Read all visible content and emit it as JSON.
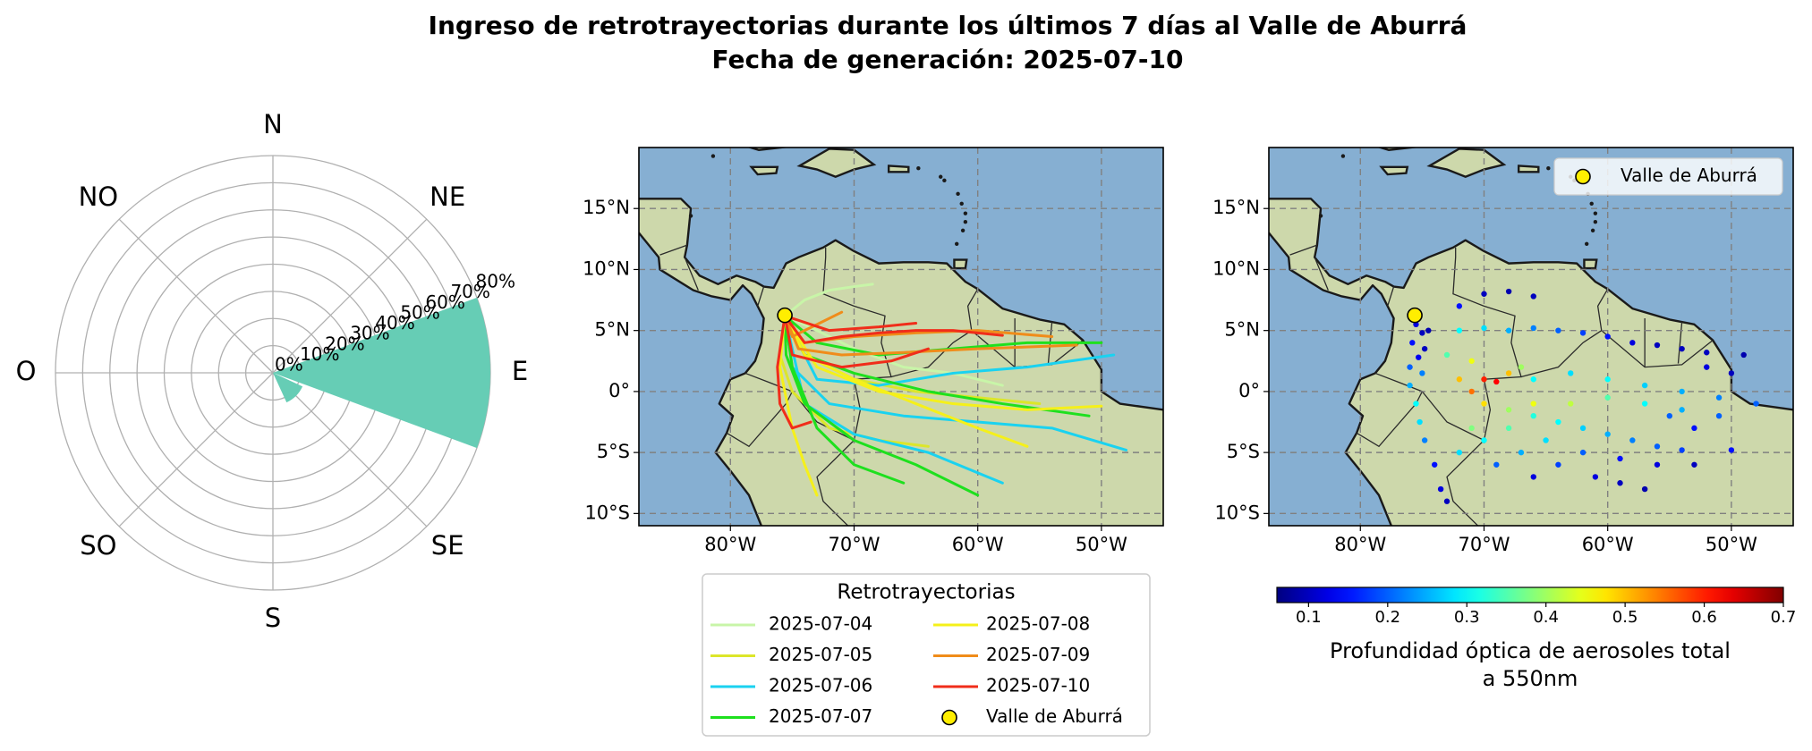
{
  "title": "Ingreso de retrotrayectorias durante los últimos 7 días al Valle de Aburrá",
  "subtitle": "Fecha de generación: 2025-07-10",
  "chart_data": [
    {
      "type": "polar_bar",
      "categories": [
        "N",
        "NE",
        "E",
        "SE",
        "S",
        "SO",
        "O",
        "NO"
      ],
      "values": [
        0,
        0,
        80,
        12,
        0,
        0,
        0,
        0
      ],
      "color": "#66cdb5",
      "ylim": [
        0,
        80
      ],
      "yticks": [
        {
          "value": 0,
          "label": "0%"
        },
        {
          "value": 10,
          "label": "10%"
        },
        {
          "value": 20,
          "label": "20%"
        },
        {
          "value": 30,
          "label": "30%"
        },
        {
          "value": 40,
          "label": "40%"
        },
        {
          "value": 50,
          "label": "50%"
        },
        {
          "value": 60,
          "label": "60%"
        },
        {
          "value": 70,
          "label": "70%"
        },
        {
          "value": 80,
          "label": "80%"
        }
      ],
      "grid": true
    },
    {
      "type": "trajectory_map",
      "xlim": [
        -87.4,
        -45
      ],
      "ylim": [
        -11,
        20
      ],
      "xticks": [
        {
          "value": -80,
          "label": "80°W"
        },
        {
          "value": -70,
          "label": "70°W"
        },
        {
          "value": -60,
          "label": "60°W"
        },
        {
          "value": -50,
          "label": "50°W"
        }
      ],
      "yticks": [
        {
          "value": 15,
          "label": "15°N"
        },
        {
          "value": 10,
          "label": "10°N"
        },
        {
          "value": 5,
          "label": "5°N"
        },
        {
          "value": 0,
          "label": "0°"
        },
        {
          "value": -5,
          "label": "5°S"
        },
        {
          "value": -10,
          "label": "10°S"
        }
      ],
      "grid": true,
      "legend_title": "Retrotrayectorias",
      "series": [
        {
          "name": "2025-07-04",
          "color": "#c8f5a8",
          "lines": [
            {
              "x": [
                -75.6,
                -74,
                -72,
                -70,
                -68.5
              ],
              "y": [
                6.2,
                7.5,
                8.3,
                8.6,
                8.8
              ]
            },
            {
              "x": [
                -75.6,
                -73,
                -70,
                -66,
                -62,
                -58
              ],
              "y": [
                6.2,
                5,
                3.5,
                2,
                1.5,
                0.5
              ]
            }
          ]
        },
        {
          "name": "2025-07-05",
          "color": "#dce62a",
          "lines": [
            {
              "x": [
                -75.6,
                -76,
                -75,
                -72,
                -68,
                -64
              ],
              "y": [
                6.2,
                3,
                0,
                -3,
                -4,
                -4.5
              ]
            },
            {
              "x": [
                -75.6,
                -74,
                -70,
                -65,
                -60,
                -55
              ],
              "y": [
                6.2,
                3,
                1,
                0,
                -0.5,
                -1
              ]
            }
          ]
        },
        {
          "name": "2025-07-06",
          "color": "#1ad2f0",
          "lines": [
            {
              "x": [
                -75.6,
                -75,
                -72,
                -66,
                -60,
                -54,
                -48
              ],
              "y": [
                6.2,
                2,
                -1,
                -2,
                -2.5,
                -3,
                -4.8
              ]
            },
            {
              "x": [
                -75.6,
                -73,
                -68,
                -62,
                -56,
                -49
              ],
              "y": [
                6.2,
                1,
                0.5,
                1.5,
                2,
                3
              ]
            },
            {
              "x": [
                -75.6,
                -74,
                -70,
                -64,
                -58
              ],
              "y": [
                6.2,
                -1,
                -3.5,
                -5,
                -7.5
              ]
            }
          ]
        },
        {
          "name": "2025-07-07",
          "color": "#1ee01e",
          "lines": [
            {
              "x": [
                -75.6,
                -75.5,
                -74,
                -70,
                -65,
                -60
              ],
              "y": [
                6.2,
                3,
                -1,
                -4,
                -6,
                -8.5
              ]
            },
            {
              "x": [
                -75.6,
                -74,
                -70,
                -64,
                -58,
                -51
              ],
              "y": [
                6.2,
                3,
                1.5,
                0,
                -1,
                -2
              ]
            },
            {
              "x": [
                -75.6,
                -73,
                -68,
                -62,
                -56,
                -50
              ],
              "y": [
                6.2,
                4,
                3,
                3.5,
                4,
                4
              ]
            },
            {
              "x": [
                -75.6,
                -75,
                -73,
                -70,
                -66
              ],
              "y": [
                6.2,
                2,
                -3,
                -6,
                -7.5
              ]
            }
          ]
        },
        {
          "name": "2025-07-08",
          "color": "#f5f01a",
          "lines": [
            {
              "x": [
                -75.6,
                -76,
                -75,
                -74,
                -73
              ],
              "y": [
                6.2,
                2,
                -3,
                -6,
                -8.5
              ]
            },
            {
              "x": [
                -75.6,
                -73,
                -68,
                -62,
                -56,
                -50
              ],
              "y": [
                6.2,
                2,
                0,
                -1,
                -1.5,
                -1.2
              ]
            },
            {
              "x": [
                -75.6,
                -74,
                -70,
                -65,
                -60,
                -56
              ],
              "y": [
                6.2,
                3,
                1,
                -1,
                -3,
                -4.5
              ]
            }
          ]
        },
        {
          "name": "2025-07-09",
          "color": "#f08c1a",
          "lines": [
            {
              "x": [
                -75.6,
                -74,
                -70,
                -65,
                -60,
                -54
              ],
              "y": [
                6.2,
                4,
                4.5,
                4.8,
                5,
                4.5
              ]
            },
            {
              "x": [
                -75.6,
                -74.5,
                -71,
                -66,
                -60,
                -52
              ],
              "y": [
                6.2,
                3.5,
                3,
                3.2,
                3.5,
                3.8
              ]
            },
            {
              "x": [
                -75.6,
                -75,
                -73,
                -71
              ],
              "y": [
                6.2,
                4.5,
                5.5,
                6.5
              ]
            }
          ]
        },
        {
          "name": "2025-07-10",
          "color": "#f02d1a",
          "lines": [
            {
              "x": [
                -75.6,
                -74,
                -71,
                -68,
                -65,
                -62,
                -58
              ],
              "y": [
                6.2,
                4,
                4.5,
                4.8,
                5,
                5,
                4.6
              ]
            },
            {
              "x": [
                -75.6,
                -76.2,
                -76,
                -75,
                -73.5
              ],
              "y": [
                6.2,
                2,
                -1,
                -3,
                -2.5
              ]
            },
            {
              "x": [
                -75.6,
                -75,
                -71,
                -67,
                -64
              ],
              "y": [
                6.2,
                3,
                2,
                2.5,
                3.5
              ]
            },
            {
              "x": [
                -75.6,
                -72,
                -68,
                -65
              ],
              "y": [
                6.2,
                5,
                5.3,
                5.6
              ]
            }
          ]
        }
      ],
      "points": [
        {
          "name": "Valle de Aburrá",
          "color": "#ffee00",
          "x": [
            -75.6
          ],
          "y": [
            6.25
          ]
        }
      ]
    },
    {
      "type": "aod_map",
      "xlim": [
        -87.4,
        -45
      ],
      "ylim": [
        -11,
        20
      ],
      "xticks": [
        {
          "value": -80,
          "label": "80°W"
        },
        {
          "value": -70,
          "label": "70°W"
        },
        {
          "value": -60,
          "label": "60°W"
        },
        {
          "value": -50,
          "label": "50°W"
        }
      ],
      "yticks": [
        {
          "value": 15,
          "label": "15°N"
        },
        {
          "value": 10,
          "label": "10°N"
        },
        {
          "value": 5,
          "label": "5°N"
        },
        {
          "value": 0,
          "label": "0°"
        },
        {
          "value": -5,
          "label": "5°S"
        },
        {
          "value": -10,
          "label": "10°S"
        }
      ],
      "grid": true,
      "legend": "upper right",
      "x": [
        -75.5,
        -75,
        -75.8,
        -74.8,
        -75.3,
        -76,
        -74.5,
        -75,
        -76,
        -75.5,
        -75.2,
        -74.8,
        -74,
        -73.5,
        -73,
        -73,
        -71,
        -70,
        -69,
        -68,
        -67,
        -72,
        -71,
        -70,
        -68,
        -66,
        -64,
        -62,
        -60,
        -58,
        -56,
        -54,
        -50,
        -72,
        -70,
        -68,
        -66,
        -64,
        -62,
        -60,
        -58,
        -56,
        -54,
        -52,
        -49,
        -70,
        -68,
        -66,
        -72,
        -66,
        -63,
        -60,
        -57,
        -54,
        -51,
        -48,
        -66,
        -63,
        -60,
        -57,
        -54,
        -51,
        -70,
        -67,
        -64,
        -61,
        -59,
        -57,
        -66,
        -69,
        -72,
        -71,
        -68,
        -65,
        -62,
        -59,
        -56,
        -53,
        -52,
        -50,
        -53,
        -55
      ],
      "y": [
        5.5,
        4.8,
        4,
        3.5,
        2.8,
        2,
        5,
        1.5,
        0.5,
        -1,
        -2.5,
        -4,
        -6,
        -8,
        -9,
        3,
        2.5,
        1,
        0.8,
        1.5,
        2,
        1,
        0,
        -1,
        -1.5,
        -2,
        -2.5,
        -3,
        -3.5,
        -4,
        -4.5,
        -4.8,
        -4.8,
        5,
        5.2,
        5,
        5.2,
        5,
        4.8,
        4.5,
        4,
        3.8,
        3.5,
        3.2,
        3,
        8,
        8.2,
        7.8,
        7,
        1,
        1.5,
        1,
        0.5,
        0,
        -0.5,
        -1,
        -1,
        -1,
        -0.5,
        -1,
        -1.5,
        -2,
        -4,
        -5,
        -6,
        -7,
        -7.5,
        -8,
        -7,
        -6,
        -5,
        -3,
        -3,
        -4,
        -5,
        -5.5,
        -6,
        -6,
        2,
        1.5,
        -3,
        -2
      ],
      "values": [
        0.12,
        0.1,
        0.15,
        0.1,
        0.13,
        0.2,
        0.09,
        0.22,
        0.25,
        0.3,
        0.28,
        0.22,
        0.15,
        0.12,
        0.1,
        0.35,
        0.45,
        0.6,
        0.62,
        0.5,
        0.4,
        0.5,
        0.55,
        0.48,
        0.4,
        0.32,
        0.3,
        0.27,
        0.25,
        0.22,
        0.2,
        0.18,
        0.15,
        0.3,
        0.28,
        0.25,
        0.22,
        0.2,
        0.18,
        0.15,
        0.12,
        0.1,
        0.1,
        0.1,
        0.09,
        0.1,
        0.09,
        0.1,
        0.15,
        0.3,
        0.28,
        0.3,
        0.27,
        0.25,
        0.22,
        0.2,
        0.45,
        0.42,
        0.35,
        0.3,
        0.25,
        0.2,
        0.3,
        0.25,
        0.18,
        0.12,
        0.1,
        0.09,
        0.12,
        0.2,
        0.28,
        0.38,
        0.35,
        0.28,
        0.2,
        0.15,
        0.12,
        0.1,
        0.12,
        0.1,
        0.15,
        0.2
      ],
      "cmap": "jet",
      "clim": [
        0.06,
        0.7
      ],
      "cticks": [
        0.1,
        0.2,
        0.3,
        0.4,
        0.5,
        0.6,
        0.7
      ],
      "colorbar_label": "Profundidad óptica de aerosoles total\na 550nm",
      "points": [
        {
          "name": "Valle de Aburrá",
          "color": "#ffee00",
          "x": [
            -75.6
          ],
          "y": [
            6.25
          ]
        }
      ]
    }
  ]
}
